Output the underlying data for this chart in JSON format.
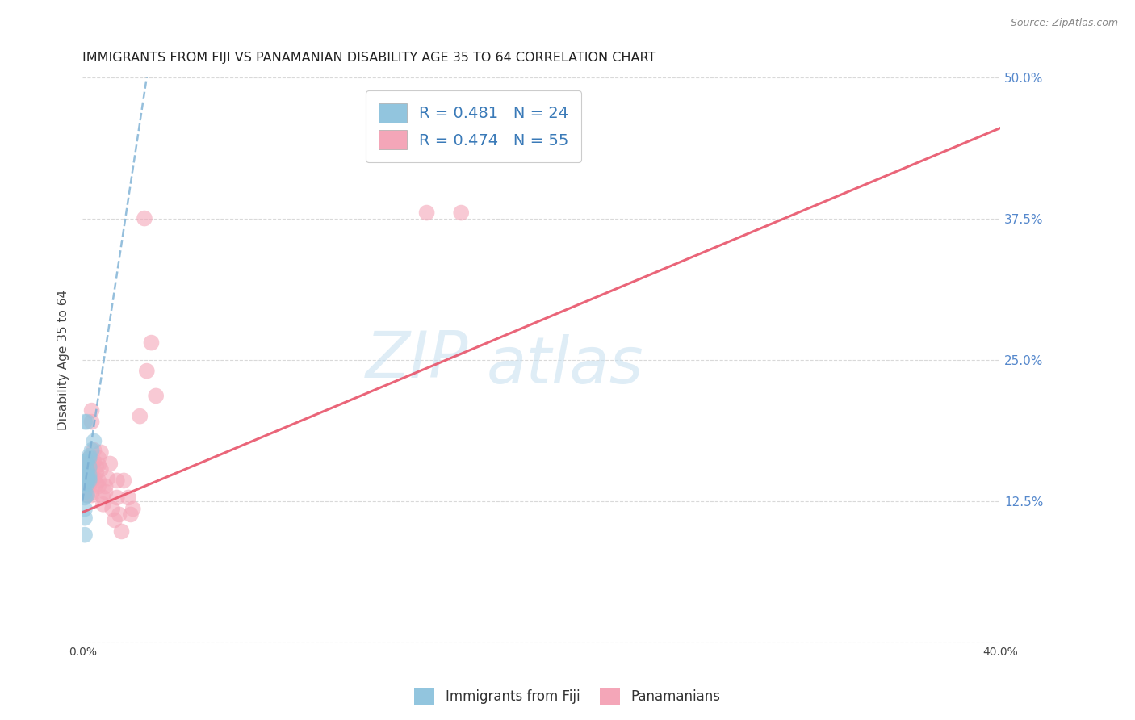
{
  "title": "IMMIGRANTS FROM FIJI VS PANAMANIAN DISABILITY AGE 35 TO 64 CORRELATION CHART",
  "source": "Source: ZipAtlas.com",
  "xlabel": "",
  "ylabel": "Disability Age 35 to 64",
  "xlim": [
    0.0,
    0.4
  ],
  "ylim": [
    0.0,
    0.5
  ],
  "xticks": [
    0.0,
    0.05,
    0.1,
    0.15,
    0.2,
    0.25,
    0.3,
    0.35,
    0.4
  ],
  "xticklabels": [
    "0.0%",
    "",
    "",
    "",
    "",
    "",
    "",
    "",
    "40.0%"
  ],
  "yticks": [
    0.0,
    0.125,
    0.25,
    0.375,
    0.5
  ],
  "yticklabels": [
    "",
    "12.5%",
    "25.0%",
    "37.5%",
    "50.0%"
  ],
  "fiji_R": 0.481,
  "fiji_N": 24,
  "pan_R": 0.474,
  "pan_N": 55,
  "fiji_color": "#92c5de",
  "pan_color": "#f4a6b8",
  "fiji_line_color": "#7bafd4",
  "pan_line_color": "#e8546a",
  "watermark_color": "#c5dff0",
  "fiji_line": [
    [
      0.0,
      0.125
    ],
    [
      0.028,
      0.5
    ]
  ],
  "pan_line": [
    [
      0.0,
      0.115
    ],
    [
      0.4,
      0.455
    ]
  ],
  "fiji_points": [
    [
      0.001,
      0.195
    ],
    [
      0.002,
      0.195
    ],
    [
      0.001,
      0.16
    ],
    [
      0.002,
      0.16
    ],
    [
      0.003,
      0.165
    ],
    [
      0.001,
      0.148
    ],
    [
      0.002,
      0.148
    ],
    [
      0.001,
      0.14
    ],
    [
      0.003,
      0.145
    ],
    [
      0.002,
      0.14
    ],
    [
      0.001,
      0.133
    ],
    [
      0.001,
      0.128
    ],
    [
      0.002,
      0.13
    ],
    [
      0.003,
      0.155
    ],
    [
      0.002,
      0.152
    ],
    [
      0.004,
      0.17
    ],
    [
      0.003,
      0.143
    ],
    [
      0.001,
      0.118
    ],
    [
      0.002,
      0.143
    ],
    [
      0.003,
      0.148
    ],
    [
      0.001,
      0.11
    ],
    [
      0.005,
      0.178
    ],
    [
      0.003,
      0.163
    ],
    [
      0.001,
      0.095
    ]
  ],
  "pan_points": [
    [
      0.001,
      0.148
    ],
    [
      0.001,
      0.143
    ],
    [
      0.001,
      0.138
    ],
    [
      0.001,
      0.133
    ],
    [
      0.002,
      0.158
    ],
    [
      0.002,
      0.15
    ],
    [
      0.002,
      0.143
    ],
    [
      0.002,
      0.138
    ],
    [
      0.002,
      0.13
    ],
    [
      0.003,
      0.158
    ],
    [
      0.003,
      0.153
    ],
    [
      0.003,
      0.148
    ],
    [
      0.003,
      0.143
    ],
    [
      0.003,
      0.14
    ],
    [
      0.003,
      0.163
    ],
    [
      0.004,
      0.195
    ],
    [
      0.004,
      0.205
    ],
    [
      0.004,
      0.145
    ],
    [
      0.004,
      0.13
    ],
    [
      0.004,
      0.132
    ],
    [
      0.005,
      0.16
    ],
    [
      0.005,
      0.145
    ],
    [
      0.005,
      0.17
    ],
    [
      0.006,
      0.15
    ],
    [
      0.006,
      0.155
    ],
    [
      0.006,
      0.14
    ],
    [
      0.007,
      0.163
    ],
    [
      0.007,
      0.157
    ],
    [
      0.007,
      0.143
    ],
    [
      0.007,
      0.138
    ],
    [
      0.008,
      0.168
    ],
    [
      0.008,
      0.153
    ],
    [
      0.009,
      0.128
    ],
    [
      0.009,
      0.122
    ],
    [
      0.01,
      0.138
    ],
    [
      0.01,
      0.133
    ],
    [
      0.011,
      0.145
    ],
    [
      0.012,
      0.158
    ],
    [
      0.013,
      0.118
    ],
    [
      0.014,
      0.108
    ],
    [
      0.015,
      0.143
    ],
    [
      0.015,
      0.128
    ],
    [
      0.016,
      0.113
    ],
    [
      0.017,
      0.098
    ],
    [
      0.018,
      0.143
    ],
    [
      0.02,
      0.128
    ],
    [
      0.021,
      0.113
    ],
    [
      0.022,
      0.118
    ],
    [
      0.025,
      0.2
    ],
    [
      0.027,
      0.375
    ],
    [
      0.028,
      0.24
    ],
    [
      0.03,
      0.265
    ],
    [
      0.032,
      0.218
    ],
    [
      0.15,
      0.38
    ],
    [
      0.165,
      0.38
    ]
  ],
  "grid_color": "#d0d0d0",
  "bg_color": "#ffffff"
}
